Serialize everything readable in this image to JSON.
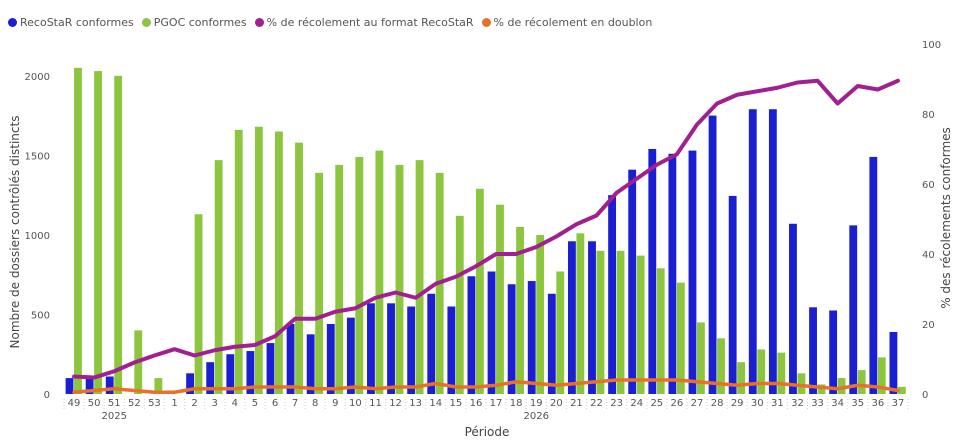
{
  "chart_data": {
    "type": "bar",
    "xlabel": "Période",
    "ylabel": "Nombre de dossiers contrôlés distincts",
    "ylabel_right": "% des récolements conformes",
    "ylim": [
      0,
      2200
    ],
    "ylim_right": [
      0,
      100
    ],
    "yticks": [
      "0",
      "500",
      "1000",
      "1500",
      "2000"
    ],
    "yticks_right": [
      "0",
      "20",
      "40",
      "60",
      "80",
      "100"
    ],
    "grid": false,
    "legend_position": "top-left",
    "categories": [
      "49",
      "50",
      "51",
      "52",
      "53",
      "1",
      "2",
      "3",
      "4",
      "5",
      "6",
      "7",
      "8",
      "9",
      "10",
      "11",
      "12",
      "13",
      "14",
      "15",
      "16",
      "17",
      "18",
      "19",
      "20",
      "21",
      "22",
      "23",
      "24",
      "25",
      "26",
      "27",
      "28",
      "29",
      "30",
      "31",
      "32",
      "33",
      "34",
      "35",
      "36",
      "37"
    ],
    "year_groups": [
      {
        "label": "2025",
        "start": 0,
        "end": 4
      },
      {
        "label": "2026",
        "start": 5,
        "end": 41
      }
    ],
    "series": [
      {
        "name": "RecoStaR conformes",
        "type": "bar",
        "axis": "left",
        "color": "#1a1fd1",
        "values": [
          100,
          100,
          110,
          0,
          0,
          0,
          130,
          200,
          250,
          270,
          320,
          440,
          375,
          440,
          480,
          570,
          570,
          550,
          630,
          550,
          740,
          770,
          690,
          710,
          630,
          960,
          960,
          1250,
          1410,
          1540,
          1510,
          1530,
          1750,
          1245,
          1790,
          1790,
          1070,
          545,
          525,
          1060,
          1490,
          390
        ]
      },
      {
        "name": "PGOC conformes",
        "type": "bar",
        "axis": "left",
        "color": "#8cc63f",
        "values": [
          2050,
          2030,
          2000,
          400,
          100,
          0,
          1130,
          1470,
          1660,
          1680,
          1650,
          1580,
          1390,
          1440,
          1490,
          1530,
          1440,
          1470,
          1390,
          1120,
          1290,
          1190,
          1050,
          1000,
          770,
          1010,
          900,
          900,
          870,
          790,
          700,
          450,
          350,
          200,
          280,
          260,
          130,
          60,
          100,
          150,
          230,
          45
        ]
      },
      {
        "name": "% de récolement au format RecoStaR",
        "type": "line",
        "axis": "right",
        "color": "#a21f8f",
        "values": [
          5,
          4.7,
          6.5,
          9,
          11,
          12.8,
          11,
          12.5,
          13.5,
          14,
          16.5,
          21.5,
          21.5,
          23.5,
          24.5,
          27.5,
          29,
          27.5,
          31.5,
          33.5,
          36.5,
          40,
          40,
          42,
          45,
          48.5,
          51,
          57.5,
          61.5,
          65.5,
          68.5,
          77,
          83,
          85.5,
          86.5,
          87.5,
          89,
          89.5,
          83,
          88,
          87,
          89.5
        ]
      },
      {
        "name": "% de récolement en doublon",
        "type": "line",
        "axis": "right",
        "color": "#e8702a",
        "values": [
          0.5,
          1,
          1.5,
          1,
          0.5,
          0.5,
          1.5,
          1.5,
          1.5,
          2,
          2,
          2,
          1.5,
          1.5,
          2,
          1.5,
          2,
          2,
          3,
          2,
          2,
          2.5,
          3.5,
          3,
          2.5,
          3,
          3.5,
          4,
          4,
          4,
          4,
          3.5,
          3,
          2.5,
          3,
          3,
          2.5,
          2,
          1.5,
          2.5,
          2,
          1
        ]
      }
    ]
  }
}
